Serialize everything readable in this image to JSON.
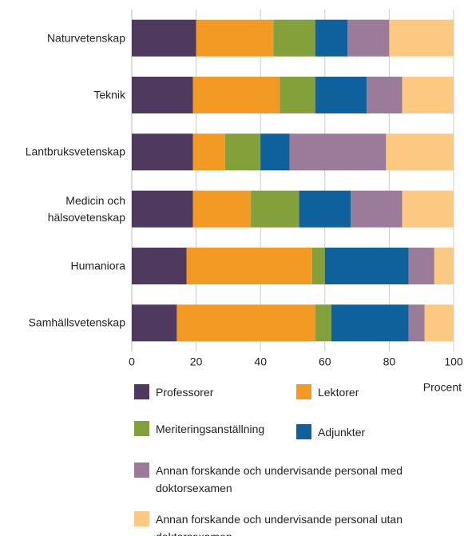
{
  "chart_data": {
    "type": "stacked_barh",
    "categories": [
      "Naturvetenskap",
      "Teknik",
      "Lantbruksvetenskap",
      "Medicin och hälsovetenskap",
      "Humaniora",
      "Samhällsvetenskap"
    ],
    "series": [
      {
        "name": "Professorer",
        "color": "#4e3a5f",
        "values": [
          20,
          19,
          19,
          19,
          17,
          14
        ]
      },
      {
        "name": "Lektorer",
        "color": "#f39a24",
        "values": [
          24,
          27,
          10,
          18,
          39,
          43
        ]
      },
      {
        "name": "Meriteringsanställning",
        "color": "#83a03a",
        "values": [
          13,
          11,
          11,
          15,
          4,
          5
        ]
      },
      {
        "name": "Adjunkter",
        "color": "#0f619c",
        "values": [
          10,
          16,
          9,
          16,
          26,
          24
        ]
      },
      {
        "name": "Annan forskande och undervisande personal med doktorsexamen",
        "color": "#9a7b99",
        "values": [
          13,
          11,
          30,
          16,
          8,
          5
        ]
      },
      {
        "name": "Annan forskande och undervisande personal utan doktorsexamen",
        "color": "#fcc982",
        "values": [
          20,
          16,
          21,
          16,
          6,
          9
        ]
      }
    ],
    "xlabel": "Procent",
    "xlim": [
      0,
      100
    ],
    "xticks": [
      0,
      20,
      40,
      60,
      80,
      100
    ],
    "grid": true
  }
}
